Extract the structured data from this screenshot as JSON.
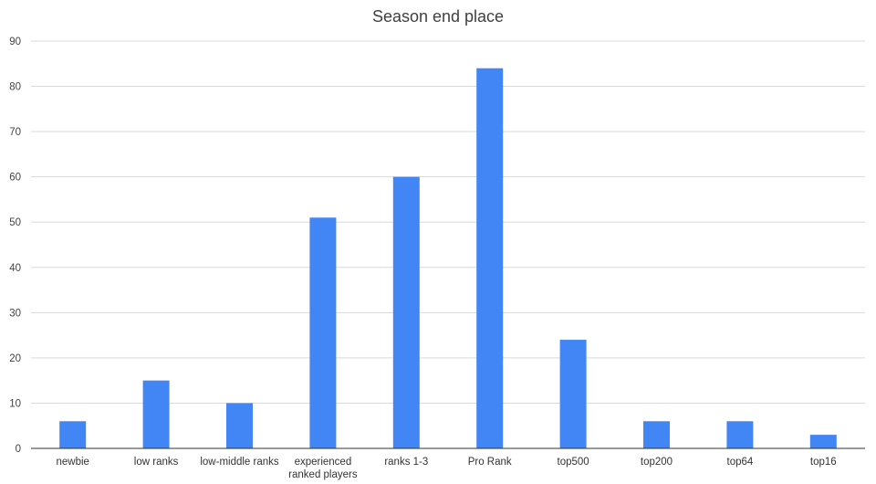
{
  "chart_data": {
    "type": "bar",
    "title": "Season end place",
    "xlabel": "",
    "ylabel": "",
    "categories": [
      [
        "newbie"
      ],
      [
        "low ranks"
      ],
      [
        "low-middle ranks"
      ],
      [
        "experienced",
        "ranked players"
      ],
      [
        "ranks 1-3"
      ],
      [
        "Pro Rank"
      ],
      [
        "top500"
      ],
      [
        "top200"
      ],
      [
        "top64"
      ],
      [
        "top16"
      ]
    ],
    "values": [
      6,
      15,
      10,
      51,
      60,
      84,
      24,
      6,
      6,
      3
    ],
    "ylim": [
      0,
      90
    ],
    "yticks": [
      0,
      10,
      20,
      30,
      40,
      50,
      60,
      70,
      80,
      90
    ],
    "grid": true,
    "legend": "none",
    "bar_color": "#4285f4"
  }
}
